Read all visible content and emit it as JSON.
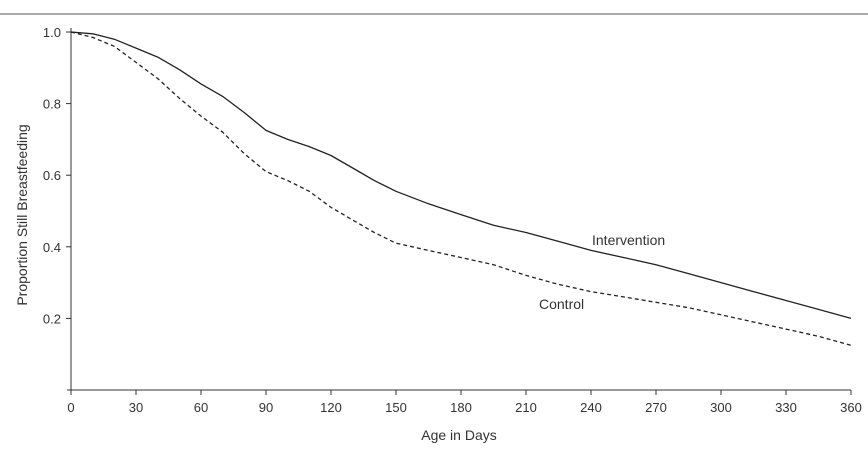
{
  "chart_data": {
    "type": "line",
    "title": "",
    "xlabel": "Age in Days",
    "ylabel": "Proportion Still Breastfeeding",
    "xlim": [
      0,
      360
    ],
    "ylim": [
      0,
      1.0
    ],
    "x_ticks": [
      0,
      30,
      60,
      90,
      120,
      150,
      180,
      210,
      240,
      270,
      300,
      330,
      360
    ],
    "x_tick_labels": [
      "0",
      "30",
      "60",
      "90",
      "120",
      "150",
      "180",
      "210",
      "240",
      "270",
      "300",
      "330",
      "360"
    ],
    "y_ticks": [
      0.2,
      0.4,
      0.6,
      0.8,
      1.0
    ],
    "y_tick_labels": [
      "0.2",
      "0.4",
      "0.6",
      "0.8",
      "1.0"
    ],
    "grid": false,
    "legend": "none",
    "series": [
      {
        "name": "Intervention",
        "style": "solid",
        "color": "#222222",
        "x": [
          0,
          10,
          20,
          30,
          40,
          50,
          60,
          70,
          80,
          90,
          100,
          110,
          120,
          130,
          140,
          150,
          165,
          180,
          195,
          210,
          225,
          240,
          255,
          270,
          285,
          300,
          315,
          330,
          345,
          360
        ],
        "y": [
          1.0,
          0.995,
          0.98,
          0.955,
          0.93,
          0.895,
          0.855,
          0.82,
          0.775,
          0.725,
          0.7,
          0.68,
          0.655,
          0.62,
          0.585,
          0.555,
          0.52,
          0.49,
          0.46,
          0.44,
          0.415,
          0.39,
          0.37,
          0.35,
          0.325,
          0.3,
          0.275,
          0.25,
          0.225,
          0.2
        ]
      },
      {
        "name": "Control",
        "style": "dashed",
        "color": "#222222",
        "x": [
          0,
          10,
          20,
          30,
          40,
          50,
          60,
          70,
          80,
          90,
          100,
          110,
          120,
          130,
          140,
          150,
          165,
          180,
          195,
          210,
          225,
          240,
          255,
          270,
          285,
          300,
          315,
          330,
          345,
          360
        ],
        "y": [
          1.0,
          0.985,
          0.96,
          0.915,
          0.87,
          0.815,
          0.765,
          0.72,
          0.66,
          0.61,
          0.585,
          0.555,
          0.51,
          0.475,
          0.44,
          0.41,
          0.39,
          0.37,
          0.35,
          0.32,
          0.295,
          0.275,
          0.26,
          0.245,
          0.23,
          0.21,
          0.19,
          0.17,
          0.15,
          0.125
        ]
      }
    ]
  }
}
